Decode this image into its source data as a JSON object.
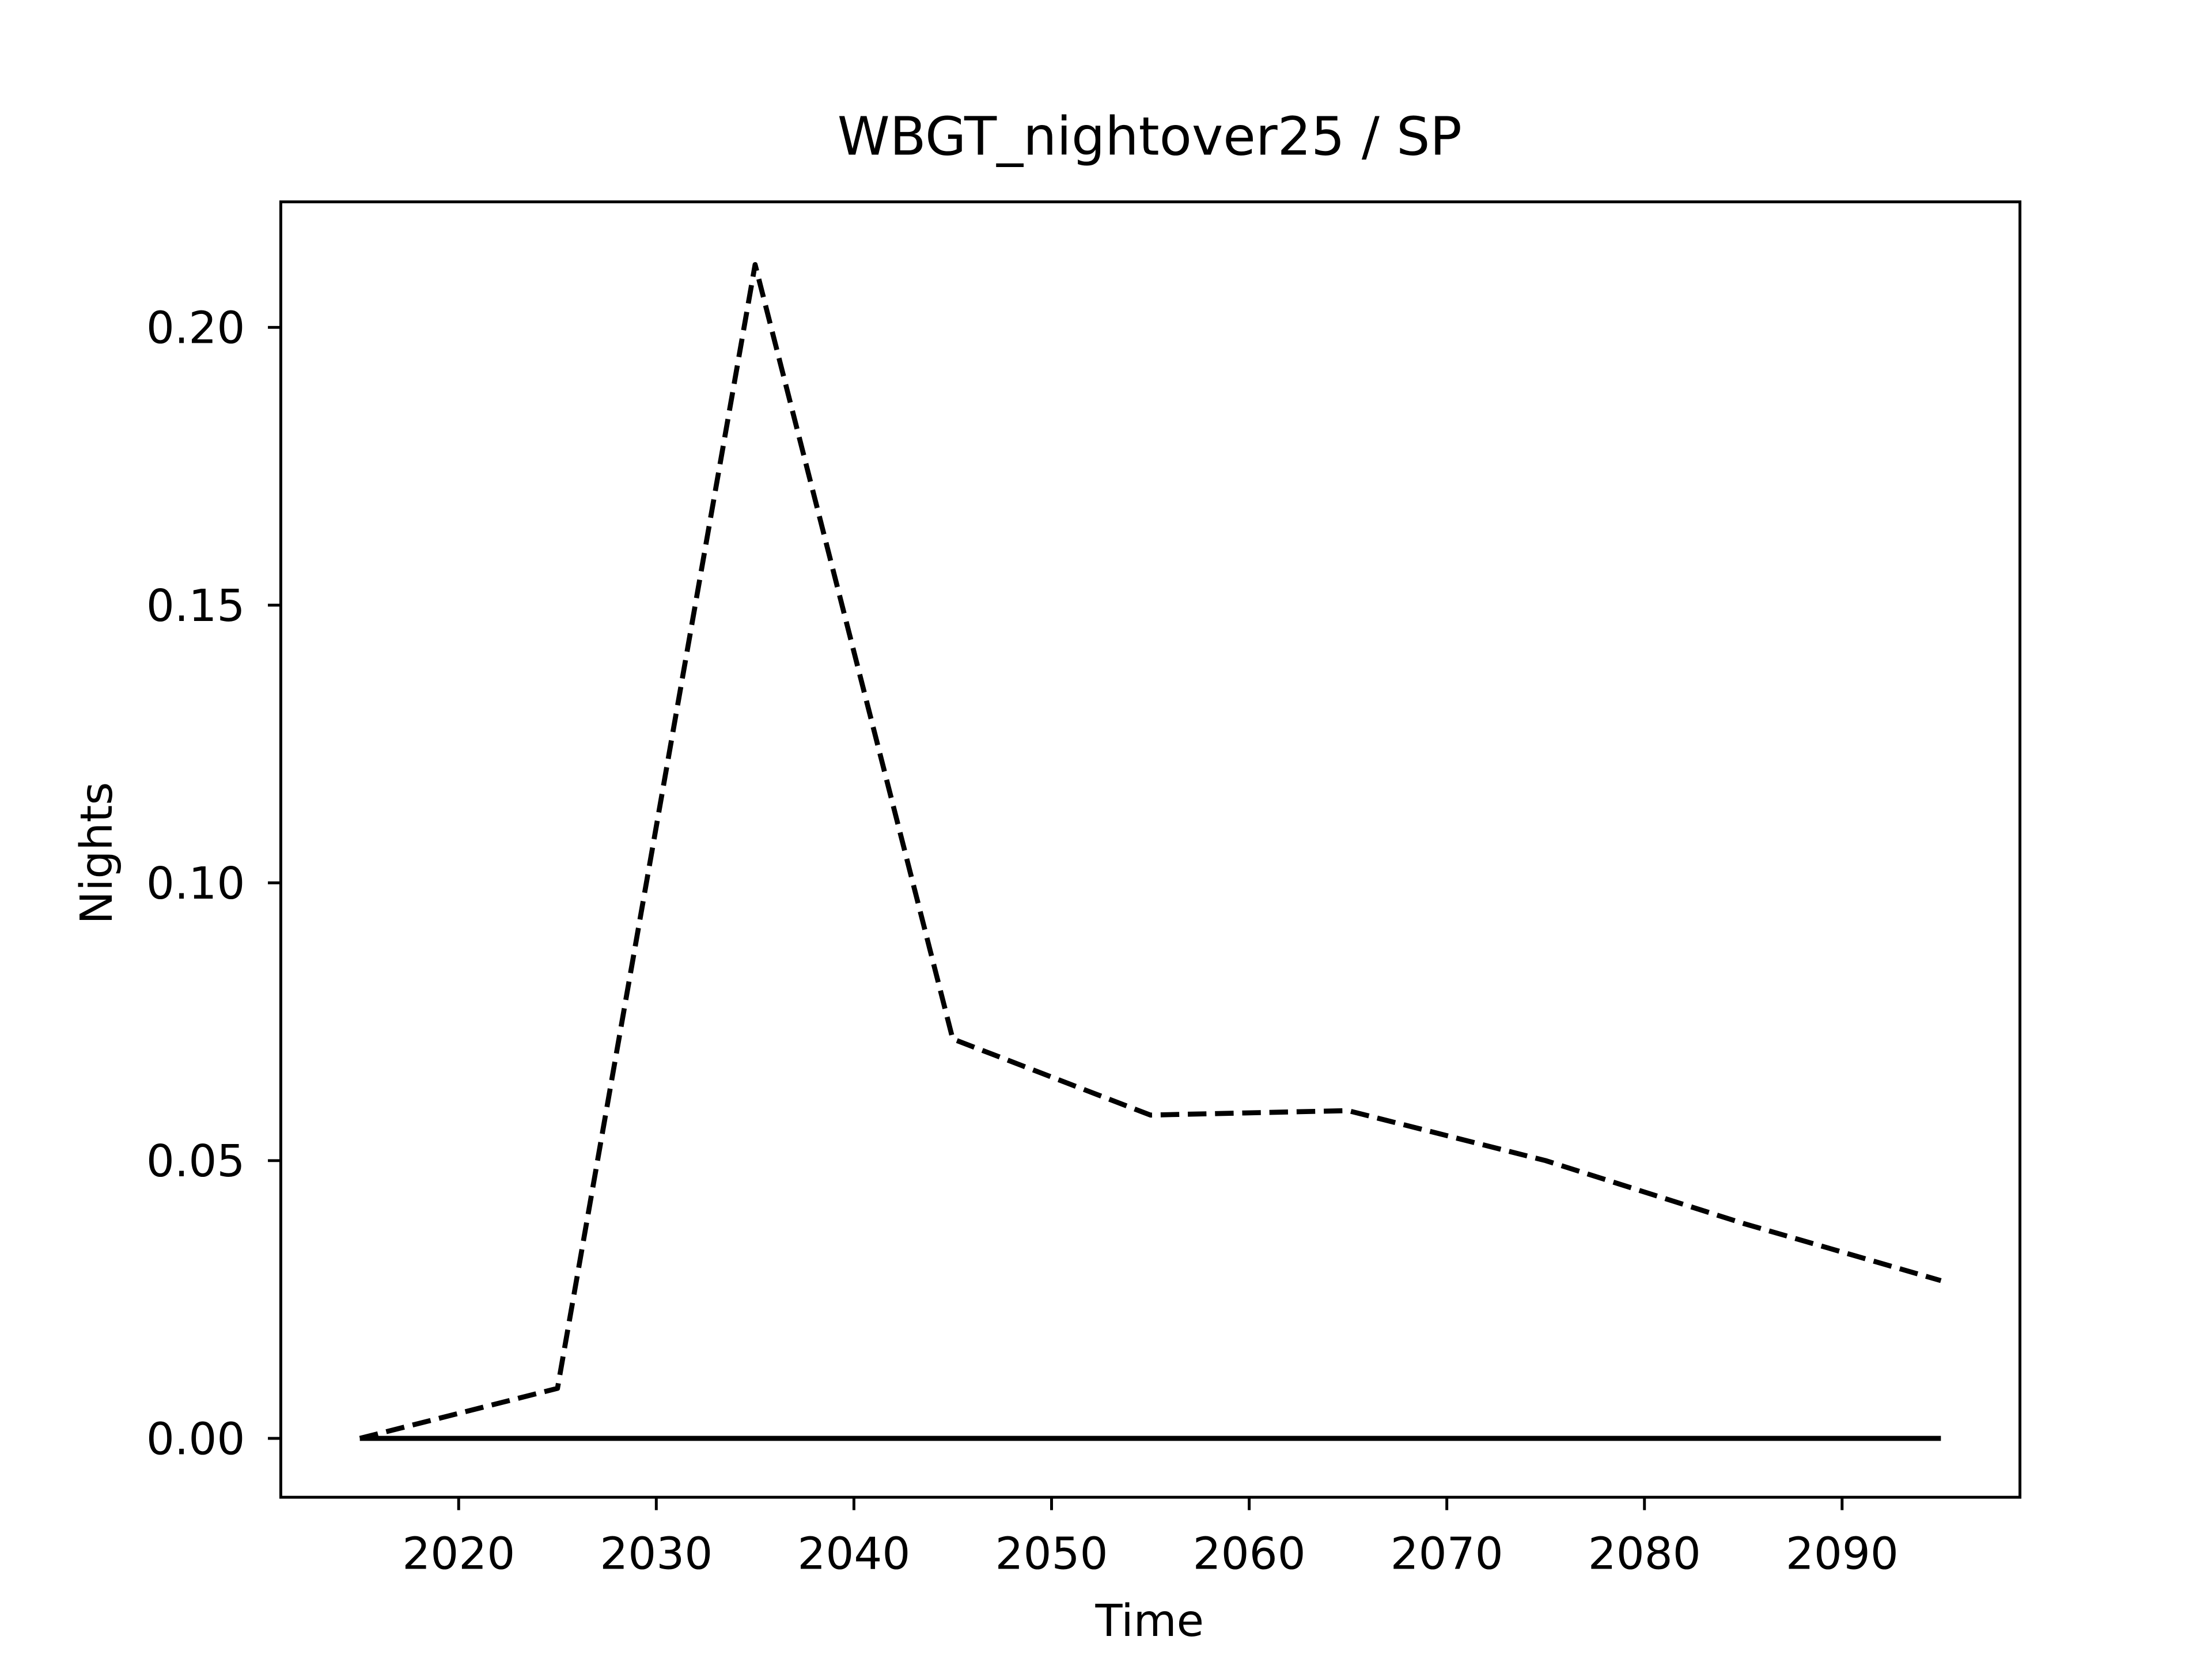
{
  "chart_data": {
    "type": "line",
    "title": "WBGT_nightover25 / SP",
    "xlabel": "Time",
    "ylabel": "Nights",
    "x": [
      2015,
      2025,
      2035,
      2045,
      2055,
      2065,
      2075,
      2085,
      2095
    ],
    "series": [
      {
        "color": "#000000",
        "style": "dashed",
        "values": [
          0,
          0.009,
          0.2113,
          0.0719,
          0.0582,
          0.059,
          0.05,
          0.0387,
          0.0284
        ]
      },
      {
        "color": "#000000",
        "style": "solid",
        "values": [
          0,
          0,
          0,
          0,
          0,
          0,
          0,
          0,
          0
        ]
      }
    ],
    "xlim": [
      2011,
      2099
    ],
    "ylim": [
      -0.0106,
      0.2226
    ],
    "xticks": [
      2020,
      2030,
      2040,
      2050,
      2060,
      2070,
      2080,
      2090
    ],
    "yticks": [
      {
        "value": 0,
        "label": "0.00"
      },
      {
        "value": 0.05,
        "label": "0.05"
      },
      {
        "value": 0.1,
        "label": "0.10"
      },
      {
        "value": 0.15,
        "label": "0.15"
      },
      {
        "value": 0.2,
        "label": "0.20"
      }
    ],
    "grid": false
  }
}
